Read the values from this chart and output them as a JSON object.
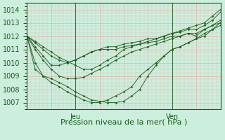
{
  "xlabel": "Pression niveau de la mer( hPa )",
  "bg_color": "#cceedd",
  "grid_color": "#ee9999",
  "line_color": "#1a5c1a",
  "ylim": [
    1006.5,
    1014.5
  ],
  "xlim": [
    0,
    48
  ],
  "yticks": [
    1007,
    1008,
    1009,
    1010,
    1011,
    1012,
    1013,
    1014
  ],
  "day_labels": [
    [
      "Jeu",
      12
    ],
    [
      "Ven",
      36
    ]
  ],
  "series": [
    {
      "x": [
        0,
        2,
        4,
        6,
        8,
        10,
        12,
        14,
        16,
        18,
        20,
        22,
        24,
        26,
        28,
        30,
        32,
        34,
        36,
        38,
        40,
        42,
        44,
        46,
        48
      ],
      "y": [
        1012.0,
        1011.6,
        1011.2,
        1010.8,
        1010.4,
        1010.1,
        1009.8,
        1009.5,
        1009.5,
        1009.8,
        1010.2,
        1010.5,
        1011.0,
        1011.2,
        1011.4,
        1011.6,
        1011.8,
        1012.0,
        1012.2,
        1012.4,
        1012.6,
        1012.8,
        1013.0,
        1013.5,
        1014.0
      ]
    },
    {
      "x": [
        0,
        2,
        4,
        6,
        8,
        10,
        12,
        14,
        16,
        18,
        20,
        22,
        24,
        26,
        28,
        30,
        32,
        34,
        36,
        38,
        40,
        42,
        44,
        46,
        48
      ],
      "y": [
        1012.0,
        1011.0,
        1010.2,
        1009.5,
        1009.0,
        1008.8,
        1008.8,
        1008.9,
        1009.2,
        1009.5,
        1009.8,
        1010.2,
        1010.5,
        1010.8,
        1011.0,
        1011.2,
        1011.4,
        1011.6,
        1011.8,
        1012.0,
        1012.2,
        1012.2,
        1012.5,
        1012.8,
        1013.2
      ]
    },
    {
      "x": [
        0,
        2,
        4,
        6,
        8,
        10,
        12,
        14,
        16,
        18,
        20,
        22,
        24,
        26,
        28,
        30,
        32,
        34,
        36,
        38,
        40,
        42,
        44,
        46,
        48
      ],
      "y": [
        1012.0,
        1010.0,
        1009.0,
        1008.5,
        1008.2,
        1007.8,
        1007.5,
        1007.2,
        1007.0,
        1007.0,
        1007.2,
        1007.5,
        1007.8,
        1008.2,
        1009.0,
        1009.5,
        1010.0,
        1010.5,
        1011.0,
        1011.2,
        1011.5,
        1011.8,
        1012.0,
        1012.5,
        1013.0
      ]
    },
    {
      "x": [
        0,
        2,
        4,
        6,
        8,
        10,
        12,
        14,
        16,
        18,
        20,
        22,
        24,
        26,
        28,
        30,
        32,
        34,
        36,
        38,
        40,
        42,
        44,
        46,
        48
      ],
      "y": [
        1012.0,
        1009.5,
        1009.0,
        1008.8,
        1008.5,
        1008.2,
        1007.8,
        1007.5,
        1007.2,
        1007.1,
        1007.0,
        1007.0,
        1007.1,
        1007.5,
        1008.0,
        1009.0,
        1009.8,
        1010.5,
        1011.0,
        1011.2,
        1011.5,
        1011.8,
        1012.2,
        1012.5,
        1012.8
      ]
    },
    {
      "x": [
        0,
        2,
        4,
        6,
        8,
        10,
        12,
        14,
        16,
        18,
        20,
        22,
        24,
        26,
        28,
        30,
        32,
        34,
        36,
        38,
        40,
        42,
        44,
        46,
        48
      ],
      "y": [
        1012.0,
        1011.2,
        1010.5,
        1009.8,
        1009.8,
        1010.0,
        1010.2,
        1010.5,
        1010.8,
        1011.0,
        1011.2,
        1011.2,
        1011.4,
        1011.5,
        1011.6,
        1011.8,
        1011.8,
        1012.0,
        1012.2,
        1012.3,
        1012.5,
        1012.5,
        1012.8,
        1013.2,
        1013.8
      ]
    },
    {
      "x": [
        0,
        2,
        4,
        6,
        8,
        10,
        12,
        14,
        16,
        18,
        20,
        22,
        24,
        26,
        28,
        30,
        32,
        34,
        36,
        38,
        40,
        42,
        44,
        46,
        48
      ],
      "y": [
        1012.0,
        1011.5,
        1011.0,
        1010.5,
        1010.2,
        1010.0,
        1010.2,
        1010.5,
        1010.8,
        1011.0,
        1011.0,
        1011.0,
        1011.2,
        1011.3,
        1011.4,
        1011.5,
        1011.6,
        1011.8,
        1012.0,
        1012.0,
        1012.2,
        1012.0,
        1012.5,
        1012.8,
        1013.0
      ]
    }
  ],
  "tick_fontsize": 7,
  "label_fontsize": 8
}
